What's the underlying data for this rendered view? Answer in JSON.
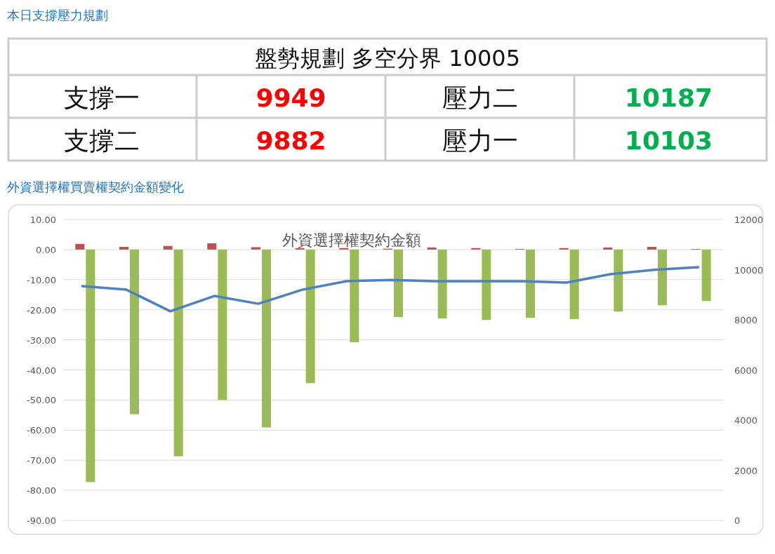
{
  "chart_data": {
    "type": "bar",
    "title": "外資選擇權契約金額",
    "annotations": [
      "本日支撐壓力規劃",
      "盤勢規劃 多空分界 10005",
      "支撐一",
      "9949",
      "壓力二",
      "10187",
      "支撐二",
      "9882",
      "壓力一",
      "10103",
      "外資選擇權買賣權契約金額變化"
    ],
    "categories": [
      null,
      null,
      null,
      null,
      null,
      null,
      null,
      null,
      null,
      null,
      null,
      null,
      null,
      null,
      null
    ],
    "series": [
      {
        "color": "#c0504d",
        "values": [
          1.9,
          0.9,
          1.2,
          2.1,
          0.8,
          0.5,
          0.5,
          0.3,
          0.7,
          0.5,
          0.2,
          0.5,
          0.7,
          0.9,
          0.2
        ]
      },
      {
        "color": "#9bbb59",
        "values": [
          -77.3,
          -54.7,
          -68.7,
          -50,
          -59.1,
          -44.4,
          -30.8,
          -22.4,
          -22.9,
          -23.4,
          -22.7,
          -23.1,
          -20.6,
          -18.5,
          -17.1
        ]
      },
      {
        "type": "line",
        "axis": "y2",
        "color": "#4f81bd",
        "values": [
          9340,
          9200,
          8340,
          8950,
          8640,
          9200,
          9540,
          9590,
          9540,
          9540,
          9540,
          9480,
          9820,
          9990,
          10100
        ]
      }
    ],
    "ylim": [
      -90,
      10
    ],
    "yticks": [
      {
        "value": -90,
        "label": "-90.00"
      },
      {
        "value": -80,
        "label": "-80.00"
      },
      {
        "value": -70,
        "label": "-70.00"
      },
      {
        "value": -60,
        "label": "-60.00"
      },
      {
        "value": -50,
        "label": "-50.00"
      },
      {
        "value": -40,
        "label": "-40.00"
      },
      {
        "value": -30,
        "label": "-30.00"
      },
      {
        "value": -20,
        "label": "-20.00"
      },
      {
        "value": -10,
        "label": "-10.00"
      },
      {
        "value": 0,
        "label": "0.00"
      },
      {
        "value": 10,
        "label": "10.00"
      }
    ],
    "y2lim": [
      0,
      12000
    ],
    "y2ticks": [
      0,
      2000,
      4000,
      6000,
      8000,
      10000,
      12000
    ],
    "grid": "y",
    "marker": "none",
    "line_style": "solid"
  }
}
